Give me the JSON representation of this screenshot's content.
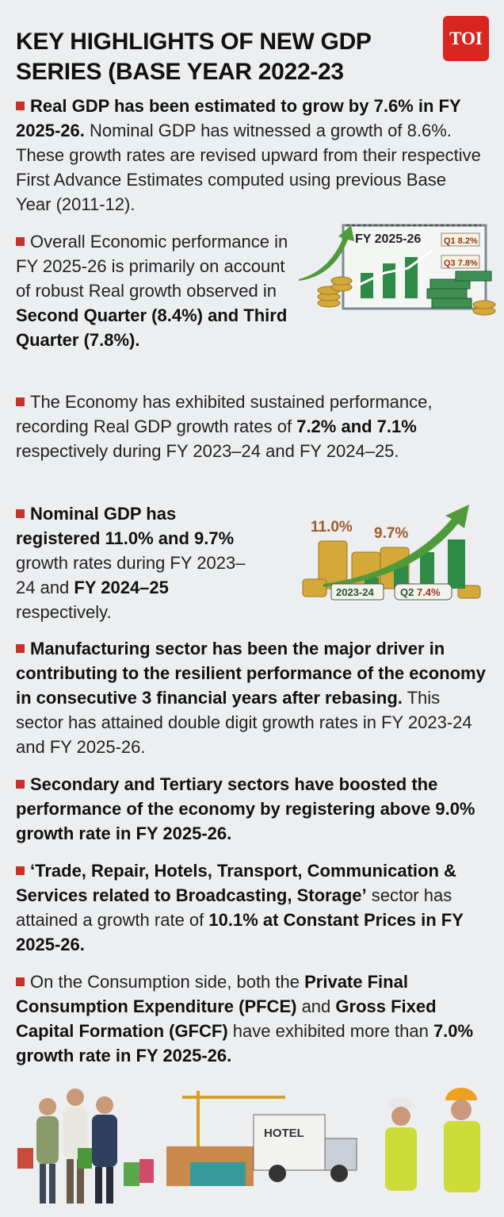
{
  "title": "KEY HIGHLIGHTS OF NEW GDP SERIES (BASE YEAR 2022-23",
  "logo": "TOI",
  "colors": {
    "background": "#eceef0",
    "bullet": "#c8312a",
    "logo": "#d8261e",
    "green": "#2e8b47",
    "gold": "#d4a93a"
  },
  "items": [
    {
      "segments": [
        {
          "t": "Real GDP has been estimated to grow by 7.6% in FY 2025-26.",
          "b": true
        },
        {
          "t": " Nominal GDP has witnessed a growth of 8.6%. These growth rates are revised upward from their respective First Advance Estimates computed using previous Base Year (2011-12).",
          "b": false
        }
      ]
    },
    {
      "segments": [
        {
          "t": "Overall Economic performance in FY 2025-26 is primarily on account of robust Real growth observed in ",
          "b": false
        },
        {
          "t": "Second Quarter (8.4%) and Third Quarter (7.8%).",
          "b": true
        }
      ]
    },
    {
      "segments": [
        {
          "t": "The Economy has exhibited sustained performance, recording Real GDP growth rates of ",
          "b": false
        },
        {
          "t": "7.2% and 7.1%",
          "b": true
        },
        {
          "t": " respectively during FY 2023–24 and FY 2024–25.",
          "b": false
        }
      ]
    },
    {
      "segments": [
        {
          "t": "Nominal GDP has registered 11.0% and 9.7%",
          "b": true
        },
        {
          "t": " growth rates during FY 2023–24 and ",
          "b": false
        },
        {
          "t": "FY 2024–25",
          "b": true
        },
        {
          "t": " respectively.",
          "b": false
        }
      ]
    },
    {
      "segments": [
        {
          "t": "Manufacturing sector has been the major driver in contributing to the resilient performance of the economy in consecutive 3 financial years after rebasing.",
          "b": true
        },
        {
          "t": " This sector has attained double digit growth rates in FY 2023-24 and FY 2025-26.",
          "b": false
        }
      ]
    },
    {
      "segments": [
        {
          "t": "Secondary and Tertiary sectors have boosted the performance of the economy by registering above 9.0% growth rate in FY 2025-26.",
          "b": true
        }
      ]
    },
    {
      "segments": [
        {
          "t": "‘Trade, Repair, Hotels, Transport, Communication & Services related to Broadcasting, Storage’",
          "b": true
        },
        {
          "t": " sector has attained a growth rate of ",
          "b": false
        },
        {
          "t": "10.1% at Constant Prices in FY 2025-26.",
          "b": true
        }
      ]
    },
    {
      "segments": [
        {
          "t": "On the Consumption side, both the ",
          "b": false
        },
        {
          "t": "Private Final Consumption Expenditure (PFCE)",
          "b": true
        },
        {
          "t": " and ",
          "b": false
        },
        {
          "t": "Gross Fixed Capital Formation (GFCF)",
          "b": true
        },
        {
          "t": " have exhibited more than ",
          "b": false
        },
        {
          "t": "7.0% growth rate in FY 2025-26.",
          "b": true
        }
      ]
    }
  ],
  "illustration1": {
    "heading": "FY 2025-26",
    "tag1": "Q1 8.2%",
    "tag2": "Q3 7.8%"
  },
  "illustration2": {
    "label1": "11.0%",
    "label2": "9.7%",
    "tag1": "2023-24",
    "tag2_q": "Q2",
    "tag2_v": "7.4%"
  },
  "illustration3": {
    "sign": "HOTEL"
  }
}
